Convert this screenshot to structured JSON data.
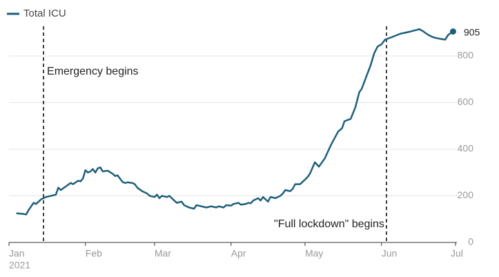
{
  "chart_data": {
    "type": "line",
    "xlim": [
      0,
      181
    ],
    "xticks": [
      {
        "value": 0,
        "label": "Jan"
      },
      {
        "value": 31,
        "label": "Feb"
      },
      {
        "value": 59,
        "label": "Mar"
      },
      {
        "value": 90,
        "label": "Apr"
      },
      {
        "value": 120,
        "label": "May"
      },
      {
        "value": 151,
        "label": "Jun"
      },
      {
        "value": 181,
        "label": "Jul"
      }
    ],
    "year_label": "2021",
    "ylim": [
      0,
      1000
    ],
    "yticks": [
      0,
      200,
      400,
      600,
      800
    ],
    "grid": true,
    "x": [
      3,
      6,
      7,
      8,
      10,
      11,
      13,
      15,
      17,
      19,
      20,
      21,
      23,
      25,
      26,
      28,
      29,
      30,
      31,
      32,
      33,
      34,
      35,
      36,
      37,
      38,
      40,
      42,
      43,
      44,
      46,
      47,
      48,
      50,
      51,
      52,
      54,
      56,
      57,
      59,
      60,
      61,
      62,
      64,
      65,
      66,
      67,
      68,
      70,
      71,
      73,
      75,
      76,
      78,
      80,
      82,
      84,
      85,
      87,
      88,
      90,
      91,
      93,
      94,
      96,
      97,
      98,
      99,
      100,
      101,
      102,
      103,
      104,
      105,
      106,
      108,
      110,
      111,
      112,
      114,
      115,
      116,
      118,
      120,
      121,
      122,
      124,
      125.6,
      128,
      130.6,
      133.4,
      135,
      136,
      138.5,
      140.4,
      142,
      143,
      144.6,
      146.6,
      148,
      149.4,
      151,
      152.4,
      155,
      158.6,
      162.8,
      166.4,
      168,
      170,
      172,
      174,
      176.8,
      178,
      180
    ],
    "series": [
      {
        "name": "Total ICU",
        "color": "#1d5f7a",
        "values": [
          125,
          122,
          120,
          140,
          170,
          165,
          185,
          195,
          200,
          205,
          235,
          225,
          240,
          255,
          250,
          265,
          262,
          275,
          310,
          300,
          305,
          315,
          300,
          318,
          322,
          305,
          308,
          295,
          285,
          288,
          260,
          255,
          258,
          255,
          250,
          235,
          220,
          210,
          200,
          195,
          205,
          190,
          200,
          195,
          200,
          190,
          180,
          170,
          175,
          160,
          150,
          145,
          160,
          155,
          150,
          155,
          150,
          155,
          150,
          160,
          158,
          165,
          170,
          162,
          165,
          170,
          168,
          180,
          185,
          190,
          180,
          195,
          185,
          175,
          195,
          190,
          200,
          210,
          225,
          220,
          230,
          250,
          250,
          270,
          280,
          295,
          344,
          325,
          360,
          420,
          475,
          490,
          520,
          530,
          580,
          645,
          660,
          705,
          760,
          810,
          840,
          850,
          870,
          880,
          895,
          905,
          915,
          905,
          890,
          880,
          875,
          870,
          890,
          905
        ]
      }
    ],
    "annotations": [
      {
        "text": "Emergency begins",
        "x": 14
      },
      {
        "text": "\"Full lockdown\" begins",
        "x": 153
      }
    ]
  }
}
